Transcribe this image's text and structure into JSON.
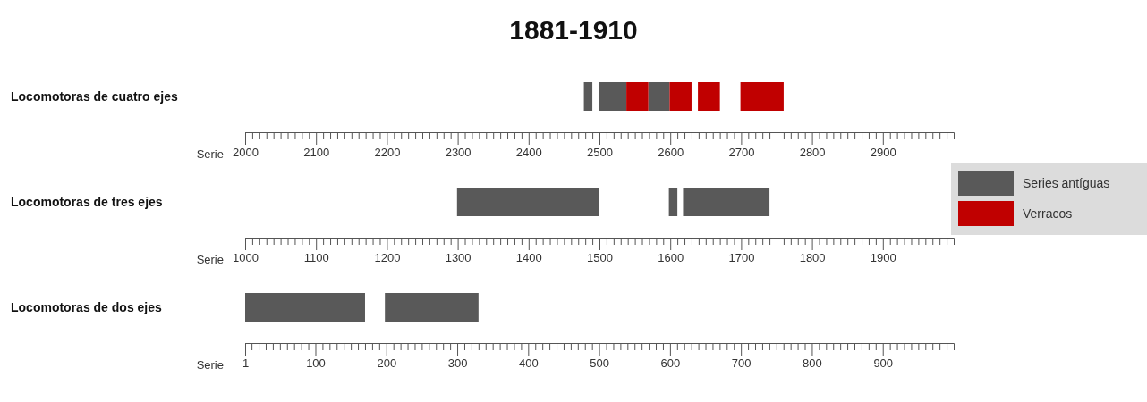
{
  "chart_data": [
    {
      "type": "bar",
      "orientation": "horizontal",
      "title": "1881-1910",
      "xlabel": "Serie",
      "categories": [
        "Locomotoras de cuatro ejes"
      ],
      "legend": "right",
      "grid": false,
      "xlim": [
        2000,
        3000
      ],
      "xticks": [
        2000,
        {
          "value": 2010,
          "label": null
        },
        {
          "value": 2020,
          "label": null
        },
        {
          "value": 2030,
          "label": null
        },
        {
          "value": 2040,
          "label": null
        },
        {
          "value": 2050,
          "label": null
        },
        {
          "value": 2060,
          "label": null
        },
        {
          "value": 2070,
          "label": null
        },
        {
          "value": 2080,
          "label": null
        },
        {
          "value": 2090,
          "label": null
        },
        2100,
        {
          "value": 2110,
          "label": null
        },
        {
          "value": 2120,
          "label": null
        },
        {
          "value": 2130,
          "label": null
        },
        {
          "value": 2140,
          "label": null
        },
        {
          "value": 2150,
          "label": null
        },
        {
          "value": 2160,
          "label": null
        },
        {
          "value": 2170,
          "label": null
        },
        {
          "value": 2180,
          "label": null
        },
        {
          "value": 2190,
          "label": null
        },
        2200,
        {
          "value": 2210,
          "label": null
        },
        {
          "value": 2220,
          "label": null
        },
        {
          "value": 2230,
          "label": null
        },
        {
          "value": 2240,
          "label": null
        },
        {
          "value": 2250,
          "label": null
        },
        {
          "value": 2260,
          "label": null
        },
        {
          "value": 2270,
          "label": null
        },
        {
          "value": 2280,
          "label": null
        },
        {
          "value": 2290,
          "label": null
        },
        2300,
        {
          "value": 2310,
          "label": null
        },
        {
          "value": 2320,
          "label": null
        },
        {
          "value": 2330,
          "label": null
        },
        {
          "value": 2340,
          "label": null
        },
        {
          "value": 2350,
          "label": null
        },
        {
          "value": 2360,
          "label": null
        },
        {
          "value": 2370,
          "label": null
        },
        {
          "value": 2380,
          "label": null
        },
        {
          "value": 2390,
          "label": null
        },
        2400,
        {
          "value": 2410,
          "label": null
        },
        {
          "value": 2420,
          "label": null
        },
        {
          "value": 2430,
          "label": null
        },
        {
          "value": 2440,
          "label": null
        },
        {
          "value": 2450,
          "label": null
        },
        {
          "value": 2460,
          "label": null
        },
        {
          "value": 2470,
          "label": null
        },
        {
          "value": 2480,
          "label": null
        },
        {
          "value": 2490,
          "label": null
        },
        2500,
        {
          "value": 2510,
          "label": null
        },
        {
          "value": 2520,
          "label": null
        },
        {
          "value": 2530,
          "label": null
        },
        {
          "value": 2540,
          "label": null
        },
        {
          "value": 2550,
          "label": null
        },
        {
          "value": 2560,
          "label": null
        },
        {
          "value": 2570,
          "label": null
        },
        {
          "value": 2580,
          "label": null
        },
        {
          "value": 2590,
          "label": null
        },
        2600,
        {
          "value": 2610,
          "label": null
        },
        {
          "value": 2620,
          "label": null
        },
        {
          "value": 2630,
          "label": null
        },
        {
          "value": 2640,
          "label": null
        },
        {
          "value": 2650,
          "label": null
        },
        {
          "value": 2660,
          "label": null
        },
        {
          "value": 2670,
          "label": null
        },
        {
          "value": 2680,
          "label": null
        },
        {
          "value": 2690,
          "label": null
        },
        2700,
        {
          "value": 2710,
          "label": null
        },
        {
          "value": 2720,
          "label": null
        },
        {
          "value": 2730,
          "label": null
        },
        {
          "value": 2740,
          "label": null
        },
        {
          "value": 2750,
          "label": null
        },
        {
          "value": 2760,
          "label": null
        },
        {
          "value": 2770,
          "label": null
        },
        {
          "value": 2780,
          "label": null
        },
        {
          "value": 2790,
          "label": null
        },
        2800,
        {
          "value": 2810,
          "label": null
        },
        {
          "value": 2820,
          "label": null
        },
        {
          "value": 2830,
          "label": null
        },
        {
          "value": 2840,
          "label": null
        },
        {
          "value": 2850,
          "label": null
        },
        {
          "value": 2860,
          "label": null
        },
        {
          "value": 2870,
          "label": null
        },
        {
          "value": 2880,
          "label": null
        },
        {
          "value": 2890,
          "label": null
        },
        2900,
        {
          "value": 2910,
          "label": null
        },
        {
          "value": 2920,
          "label": null
        },
        {
          "value": 2930,
          "label": null
        },
        {
          "value": 2940,
          "label": null
        },
        {
          "value": 2950,
          "label": null
        },
        {
          "value": 2960,
          "label": null
        },
        {
          "value": 2970,
          "label": null
        },
        {
          "value": 2980,
          "label": null
        },
        {
          "value": 2990,
          "label": null
        }
      ],
      "series": [
        {
          "name": "Series antíguas",
          "color": "#595959",
          "base": [
            2478
          ],
          "values": [
            12
          ]
        },
        {
          "color": "#595959",
          "base": [
            2500
          ],
          "values": [
            38
          ]
        },
        {
          "color": "#595959",
          "base": [
            2569
          ],
          "values": [
            30
          ]
        },
        {
          "name": "Verracos",
          "color": "#c00000",
          "base": [
            2538
          ],
          "values": [
            31
          ]
        },
        {
          "color": "#c00000",
          "base": [
            2599
          ],
          "values": [
            31
          ]
        },
        {
          "color": "#c00000",
          "base": [
            2639
          ],
          "values": [
            31
          ]
        },
        {
          "color": "#c00000",
          "base": [
            2699
          ],
          "values": [
            61
          ]
        }
      ]
    },
    {
      "type": "bar",
      "orientation": "horizontal",
      "xlabel": "Serie",
      "categories": [
        "Locomotoras de tres ejes"
      ],
      "grid": false,
      "xlim": [
        1000,
        2000
      ],
      "xticks": [
        1000,
        {
          "value": 1010,
          "label": null
        },
        {
          "value": 1020,
          "label": null
        },
        {
          "value": 1030,
          "label": null
        },
        {
          "value": 1040,
          "label": null
        },
        {
          "value": 1050,
          "label": null
        },
        {
          "value": 1060,
          "label": null
        },
        {
          "value": 1070,
          "label": null
        },
        {
          "value": 1080,
          "label": null
        },
        {
          "value": 1090,
          "label": null
        },
        1100,
        {
          "value": 1110,
          "label": null
        },
        {
          "value": 1120,
          "label": null
        },
        {
          "value": 1130,
          "label": null
        },
        {
          "value": 1140,
          "label": null
        },
        {
          "value": 1150,
          "label": null
        },
        {
          "value": 1160,
          "label": null
        },
        {
          "value": 1170,
          "label": null
        },
        {
          "value": 1180,
          "label": null
        },
        {
          "value": 1190,
          "label": null
        },
        1200,
        {
          "value": 1210,
          "label": null
        },
        {
          "value": 1220,
          "label": null
        },
        {
          "value": 1230,
          "label": null
        },
        {
          "value": 1240,
          "label": null
        },
        {
          "value": 1250,
          "label": null
        },
        {
          "value": 1260,
          "label": null
        },
        {
          "value": 1270,
          "label": null
        },
        {
          "value": 1280,
          "label": null
        },
        {
          "value": 1290,
          "label": null
        },
        1300,
        {
          "value": 1310,
          "label": null
        },
        {
          "value": 1320,
          "label": null
        },
        {
          "value": 1330,
          "label": null
        },
        {
          "value": 1340,
          "label": null
        },
        {
          "value": 1350,
          "label": null
        },
        {
          "value": 1360,
          "label": null
        },
        {
          "value": 1370,
          "label": null
        },
        {
          "value": 1380,
          "label": null
        },
        {
          "value": 1390,
          "label": null
        },
        1400,
        {
          "value": 1410,
          "label": null
        },
        {
          "value": 1420,
          "label": null
        },
        {
          "value": 1430,
          "label": null
        },
        {
          "value": 1440,
          "label": null
        },
        {
          "value": 1450,
          "label": null
        },
        {
          "value": 1460,
          "label": null
        },
        {
          "value": 1470,
          "label": null
        },
        {
          "value": 1480,
          "label": null
        },
        {
          "value": 1490,
          "label": null
        },
        1500,
        {
          "value": 1510,
          "label": null
        },
        {
          "value": 1520,
          "label": null
        },
        {
          "value": 1530,
          "label": null
        },
        {
          "value": 1540,
          "label": null
        },
        {
          "value": 1550,
          "label": null
        },
        {
          "value": 1560,
          "label": null
        },
        {
          "value": 1570,
          "label": null
        },
        {
          "value": 1580,
          "label": null
        },
        {
          "value": 1590,
          "label": null
        },
        1600,
        {
          "value": 1610,
          "label": null
        },
        {
          "value": 1620,
          "label": null
        },
        {
          "value": 1630,
          "label": null
        },
        {
          "value": 1640,
          "label": null
        },
        {
          "value": 1650,
          "label": null
        },
        {
          "value": 1660,
          "label": null
        },
        {
          "value": 1670,
          "label": null
        },
        {
          "value": 1680,
          "label": null
        },
        {
          "value": 1690,
          "label": null
        },
        1700,
        {
          "value": 1710,
          "label": null
        },
        {
          "value": 1720,
          "label": null
        },
        {
          "value": 1730,
          "label": null
        },
        {
          "value": 1740,
          "label": null
        },
        {
          "value": 1750,
          "label": null
        },
        {
          "value": 1760,
          "label": null
        },
        {
          "value": 1770,
          "label": null
        },
        {
          "value": 1780,
          "label": null
        },
        {
          "value": 1790,
          "label": null
        },
        1800,
        {
          "value": 1810,
          "label": null
        },
        {
          "value": 1820,
          "label": null
        },
        {
          "value": 1830,
          "label": null
        },
        {
          "value": 1840,
          "label": null
        },
        {
          "value": 1850,
          "label": null
        },
        {
          "value": 1860,
          "label": null
        },
        {
          "value": 1870,
          "label": null
        },
        {
          "value": 1880,
          "label": null
        },
        {
          "value": 1890,
          "label": null
        },
        1900,
        {
          "value": 1910,
          "label": null
        },
        {
          "value": 1920,
          "label": null
        },
        {
          "value": 1930,
          "label": null
        },
        {
          "value": 1940,
          "label": null
        },
        {
          "value": 1950,
          "label": null
        },
        {
          "value": 1960,
          "label": null
        },
        {
          "value": 1970,
          "label": null
        },
        {
          "value": 1980,
          "label": null
        },
        {
          "value": 1990,
          "label": null
        }
      ],
      "series": [
        {
          "color": "#595959",
          "base": [
            1299
          ],
          "values": [
            200
          ]
        },
        {
          "color": "#595959",
          "base": [
            1598
          ],
          "values": [
            12
          ]
        },
        {
          "color": "#595959",
          "base": [
            1618
          ],
          "values": [
            122
          ]
        }
      ]
    },
    {
      "type": "bar",
      "orientation": "horizontal",
      "xlabel": "Serie",
      "categories": [
        "Locomotoras de dos ejes"
      ],
      "grid": false,
      "xlim": [
        1,
        1000
      ],
      "xticks": [
        1,
        {
          "value": 10,
          "label": null
        },
        {
          "value": 20,
          "label": null
        },
        {
          "value": 30,
          "label": null
        },
        {
          "value": 40,
          "label": null
        },
        {
          "value": 50,
          "label": null
        },
        {
          "value": 60,
          "label": null
        },
        {
          "value": 70,
          "label": null
        },
        {
          "value": 80,
          "label": null
        },
        {
          "value": 90,
          "label": null
        },
        100,
        {
          "value": 110,
          "label": null
        },
        {
          "value": 120,
          "label": null
        },
        {
          "value": 130,
          "label": null
        },
        {
          "value": 140,
          "label": null
        },
        {
          "value": 150,
          "label": null
        },
        {
          "value": 160,
          "label": null
        },
        {
          "value": 170,
          "label": null
        },
        {
          "value": 180,
          "label": null
        },
        {
          "value": 190,
          "label": null
        },
        200,
        {
          "value": 210,
          "label": null
        },
        {
          "value": 220,
          "label": null
        },
        {
          "value": 230,
          "label": null
        },
        {
          "value": 240,
          "label": null
        },
        {
          "value": 250,
          "label": null
        },
        {
          "value": 260,
          "label": null
        },
        {
          "value": 270,
          "label": null
        },
        {
          "value": 280,
          "label": null
        },
        {
          "value": 290,
          "label": null
        },
        300,
        {
          "value": 310,
          "label": null
        },
        {
          "value": 320,
          "label": null
        },
        {
          "value": 330,
          "label": null
        },
        {
          "value": 340,
          "label": null
        },
        {
          "value": 350,
          "label": null
        },
        {
          "value": 360,
          "label": null
        },
        {
          "value": 370,
          "label": null
        },
        {
          "value": 380,
          "label": null
        },
        {
          "value": 390,
          "label": null
        },
        400,
        {
          "value": 410,
          "label": null
        },
        {
          "value": 420,
          "label": null
        },
        {
          "value": 430,
          "label": null
        },
        {
          "value": 440,
          "label": null
        },
        {
          "value": 450,
          "label": null
        },
        {
          "value": 460,
          "label": null
        },
        {
          "value": 470,
          "label": null
        },
        {
          "value": 480,
          "label": null
        },
        {
          "value": 490,
          "label": null
        },
        500,
        {
          "value": 510,
          "label": null
        },
        {
          "value": 520,
          "label": null
        },
        {
          "value": 530,
          "label": null
        },
        {
          "value": 540,
          "label": null
        },
        {
          "value": 550,
          "label": null
        },
        {
          "value": 560,
          "label": null
        },
        {
          "value": 570,
          "label": null
        },
        {
          "value": 580,
          "label": null
        },
        {
          "value": 590,
          "label": null
        },
        600,
        {
          "value": 610,
          "label": null
        },
        {
          "value": 620,
          "label": null
        },
        {
          "value": 630,
          "label": null
        },
        {
          "value": 640,
          "label": null
        },
        {
          "value": 650,
          "label": null
        },
        {
          "value": 660,
          "label": null
        },
        {
          "value": 670,
          "label": null
        },
        {
          "value": 680,
          "label": null
        },
        {
          "value": 690,
          "label": null
        },
        700,
        {
          "value": 710,
          "label": null
        },
        {
          "value": 720,
          "label": null
        },
        {
          "value": 730,
          "label": null
        },
        {
          "value": 740,
          "label": null
        },
        {
          "value": 750,
          "label": null
        },
        {
          "value": 760,
          "label": null
        },
        {
          "value": 770,
          "label": null
        },
        {
          "value": 780,
          "label": null
        },
        {
          "value": 790,
          "label": null
        },
        800,
        {
          "value": 810,
          "label": null
        },
        {
          "value": 820,
          "label": null
        },
        {
          "value": 830,
          "label": null
        },
        {
          "value": 840,
          "label": null
        },
        {
          "value": 850,
          "label": null
        },
        {
          "value": 860,
          "label": null
        },
        {
          "value": 870,
          "label": null
        },
        {
          "value": 880,
          "label": null
        },
        {
          "value": 890,
          "label": null
        },
        900,
        {
          "value": 910,
          "label": null
        },
        {
          "value": 920,
          "label": null
        },
        {
          "value": 930,
          "label": null
        },
        {
          "value": 940,
          "label": null
        },
        {
          "value": 950,
          "label": null
        },
        {
          "value": 960,
          "label": null
        },
        {
          "value": 970,
          "label": null
        },
        {
          "value": 980,
          "label": null
        },
        {
          "value": 990,
          "label": null
        }
      ],
      "series": [
        {
          "color": "#595959",
          "base": [
            1
          ],
          "values": [
            169
          ]
        },
        {
          "color": "#595959",
          "base": [
            198
          ],
          "values": [
            132
          ]
        }
      ]
    }
  ]
}
